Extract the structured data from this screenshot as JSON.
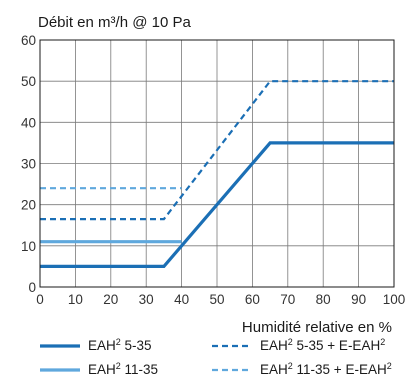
{
  "chart_data": {
    "type": "line",
    "title": "Débit en m³/h @ 10 Pa",
    "xlabel": "Humidité relative en %",
    "ylabel": "",
    "xlim": [
      0,
      100
    ],
    "ylim": [
      0,
      60
    ],
    "x_ticks": [
      "0",
      "10",
      "20",
      "30",
      "40",
      "50",
      "60",
      "70",
      "80",
      "90",
      "100"
    ],
    "y_ticks": [
      "0",
      "10",
      "20",
      "30",
      "40",
      "50",
      "60"
    ],
    "grid": true,
    "legend_position": "bottom",
    "series": [
      {
        "name": "EAH² 5-35",
        "legend_base": "EAH",
        "legend_sup": "2",
        "legend_rest": " 5-35",
        "color": "#1b6fb5",
        "style": "solid",
        "points": [
          [
            0,
            5
          ],
          [
            35,
            5
          ],
          [
            65,
            35
          ],
          [
            100,
            35
          ]
        ]
      },
      {
        "name": "EAH² 11-35",
        "legend_base": "EAH",
        "legend_sup": "2",
        "legend_rest": " 11-35",
        "color": "#5fa8dd",
        "style": "solid",
        "points": [
          [
            0,
            11
          ],
          [
            40,
            11
          ]
        ]
      },
      {
        "name": "EAH² 5-35 + E-EAH²",
        "legend_base": "EAH",
        "legend_sup": "2",
        "legend_rest": " 5-35 + E-EAH",
        "legend_sup2": "2",
        "color": "#1b6fb5",
        "style": "dashed",
        "points": [
          [
            0,
            16.5
          ],
          [
            35,
            16.5
          ],
          [
            65,
            50
          ],
          [
            100,
            50
          ]
        ]
      },
      {
        "name": "EAH² 11-35 + E-EAH²",
        "legend_base": "EAH",
        "legend_sup": "2",
        "legend_rest": " 11-35 + E-EAH",
        "legend_sup2": "2",
        "color": "#5fa8dd",
        "style": "dashed",
        "points": [
          [
            0,
            24
          ],
          [
            40,
            24
          ]
        ]
      }
    ]
  }
}
